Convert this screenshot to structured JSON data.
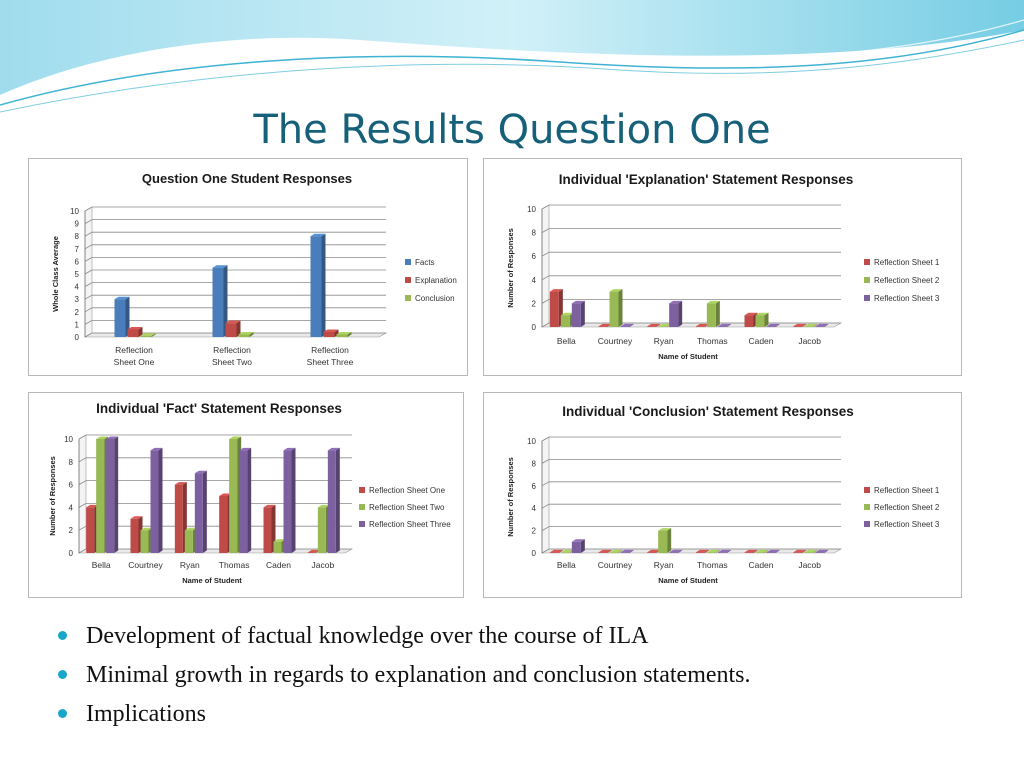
{
  "slide": {
    "title": "The Results Question One",
    "bullets": [
      "Development of factual knowledge over the course of ILA",
      "Minimal growth in regards to explanation and conclusion statements.",
      "Implications"
    ]
  },
  "colors": {
    "series_a": "#4a7ebb",
    "series_b": "#be4b48",
    "series_c": "#98b954",
    "series_d": "#7d60a0",
    "title": "#17607a",
    "bullet": "#1aa6c8"
  },
  "chart_data": [
    {
      "type": "bar",
      "title": "Question One Student Responses",
      "ylabel": "Whole Class Average",
      "xlabel": "",
      "ylim": [
        0,
        10
      ],
      "yticks": [
        0,
        1,
        2,
        3,
        4,
        5,
        6,
        7,
        8,
        9,
        10
      ],
      "categories": [
        [
          "Reflection",
          "Sheet One"
        ],
        [
          "Reflection",
          "Sheet Two"
        ],
        [
          "Reflection",
          "Sheet Three"
        ]
      ],
      "series": [
        {
          "name": "Facts",
          "color": "#4a7ebb",
          "values": [
            3,
            5.5,
            8
          ]
        },
        {
          "name": "Explanation",
          "color": "#be4b48",
          "values": [
            0.6,
            1.1,
            0.4
          ]
        },
        {
          "name": "Conclusion",
          "color": "#98b954",
          "values": [
            0.1,
            0.2,
            0.2
          ]
        }
      ],
      "legend": "right"
    },
    {
      "type": "bar",
      "title": "Individual 'Explanation' Statement Responses",
      "ylabel": "Number of Responses",
      "xlabel": "Name of Student",
      "ylim": [
        0,
        10
      ],
      "yticks": [
        0,
        2,
        4,
        6,
        8,
        10
      ],
      "categories": [
        [
          "Bella"
        ],
        [
          "Courtney"
        ],
        [
          "Ryan"
        ],
        [
          "Thomas"
        ],
        [
          "Caden"
        ],
        [
          "Jacob"
        ]
      ],
      "series": [
        {
          "name": "Reflection Sheet 1",
          "color": "#be4b48",
          "values": [
            3,
            0,
            0,
            0,
            1,
            0
          ]
        },
        {
          "name": "Reflection Sheet 2",
          "color": "#98b954",
          "values": [
            1,
            3,
            0,
            2,
            1,
            0
          ]
        },
        {
          "name": "Reflection Sheet 3",
          "color": "#7d60a0",
          "values": [
            2,
            0,
            2,
            0,
            0,
            0
          ]
        }
      ],
      "legend": "right"
    },
    {
      "type": "bar",
      "title": "Individual 'Fact' Statement Responses",
      "ylabel": "Number of Responses",
      "xlabel": "Name of Student",
      "ylim": [
        0,
        10
      ],
      "yticks": [
        0,
        2,
        4,
        6,
        8,
        10
      ],
      "categories": [
        [
          "Bella"
        ],
        [
          "Courtney"
        ],
        [
          "Ryan"
        ],
        [
          "Thomas"
        ],
        [
          "Caden"
        ],
        [
          "Jacob"
        ]
      ],
      "series": [
        {
          "name": "Reflection Sheet One",
          "color": "#be4b48",
          "values": [
            4,
            3,
            6,
            5,
            4,
            0
          ]
        },
        {
          "name": "Reflection Sheet Two",
          "color": "#98b954",
          "values": [
            10,
            2,
            2,
            10,
            1,
            4
          ]
        },
        {
          "name": "Reflection Sheet Three",
          "color": "#7d60a0",
          "values": [
            10,
            9,
            7,
            9,
            9,
            9
          ]
        }
      ],
      "legend": "right"
    },
    {
      "type": "bar",
      "title": "Individual 'Conclusion' Statement Responses",
      "ylabel": "Number of Responses",
      "xlabel": "Name of Student",
      "ylim": [
        0,
        10
      ],
      "yticks": [
        0,
        2,
        4,
        6,
        8,
        10
      ],
      "categories": [
        [
          "Bella"
        ],
        [
          "Courtney"
        ],
        [
          "Ryan"
        ],
        [
          "Thomas"
        ],
        [
          "Caden"
        ],
        [
          "Jacob"
        ]
      ],
      "series": [
        {
          "name": "Reflection Sheet 1",
          "color": "#be4b48",
          "values": [
            0,
            0,
            0,
            0,
            0,
            0
          ]
        },
        {
          "name": "Reflection Sheet 2",
          "color": "#98b954",
          "values": [
            0,
            0,
            2,
            0,
            0,
            0
          ]
        },
        {
          "name": "Reflection Sheet 3",
          "color": "#7d60a0",
          "values": [
            1,
            0,
            0,
            0,
            0,
            0
          ]
        }
      ],
      "legend": "right"
    }
  ]
}
